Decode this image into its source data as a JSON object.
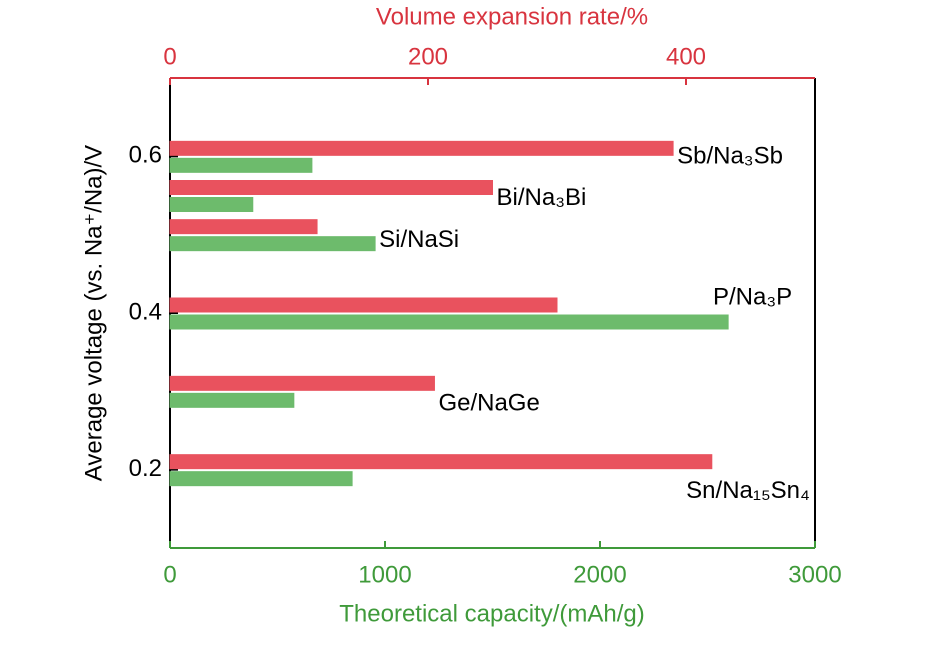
{
  "chart_data": {
    "type": "bar",
    "orientation": "horizontal",
    "categories": [
      "Sb/Na₃Sb",
      "Bi/Na₃Bi",
      "Si/NaSi",
      "P/Na₃P",
      "Ge/NaGe",
      "Sn/Na₁₅Sn₄"
    ],
    "y": [
      0.6,
      0.55,
      0.5,
      0.4,
      0.3,
      0.2
    ],
    "series": [
      {
        "name": "Volume expansion rate",
        "color": "#e9525e",
        "axis": "x2",
        "values": [
          390,
          250,
          114,
          300,
          205,
          420
        ]
      },
      {
        "name": "Theoretical capacity",
        "color": "#6dbb6c",
        "values": [
          660,
          385,
          954,
          2596,
          576,
          847
        ]
      }
    ],
    "xlabel": "Theoretical capacity/(mAh/g)",
    "x2label": "Volume expansion rate/%",
    "ylabel": "Average voltage (vs. Na⁺/Na)/V",
    "xlim": [
      0,
      3000
    ],
    "xticks": [
      0,
      1000,
      2000,
      3000
    ],
    "x2lim": [
      0,
      500
    ],
    "x2ticks": [
      0,
      200,
      400
    ],
    "ylim": [
      0.1,
      0.7
    ],
    "yticks": [
      0.2,
      0.4,
      0.6
    ],
    "xcolor": "#3f9a3a",
    "x2color": "#d8343f"
  }
}
